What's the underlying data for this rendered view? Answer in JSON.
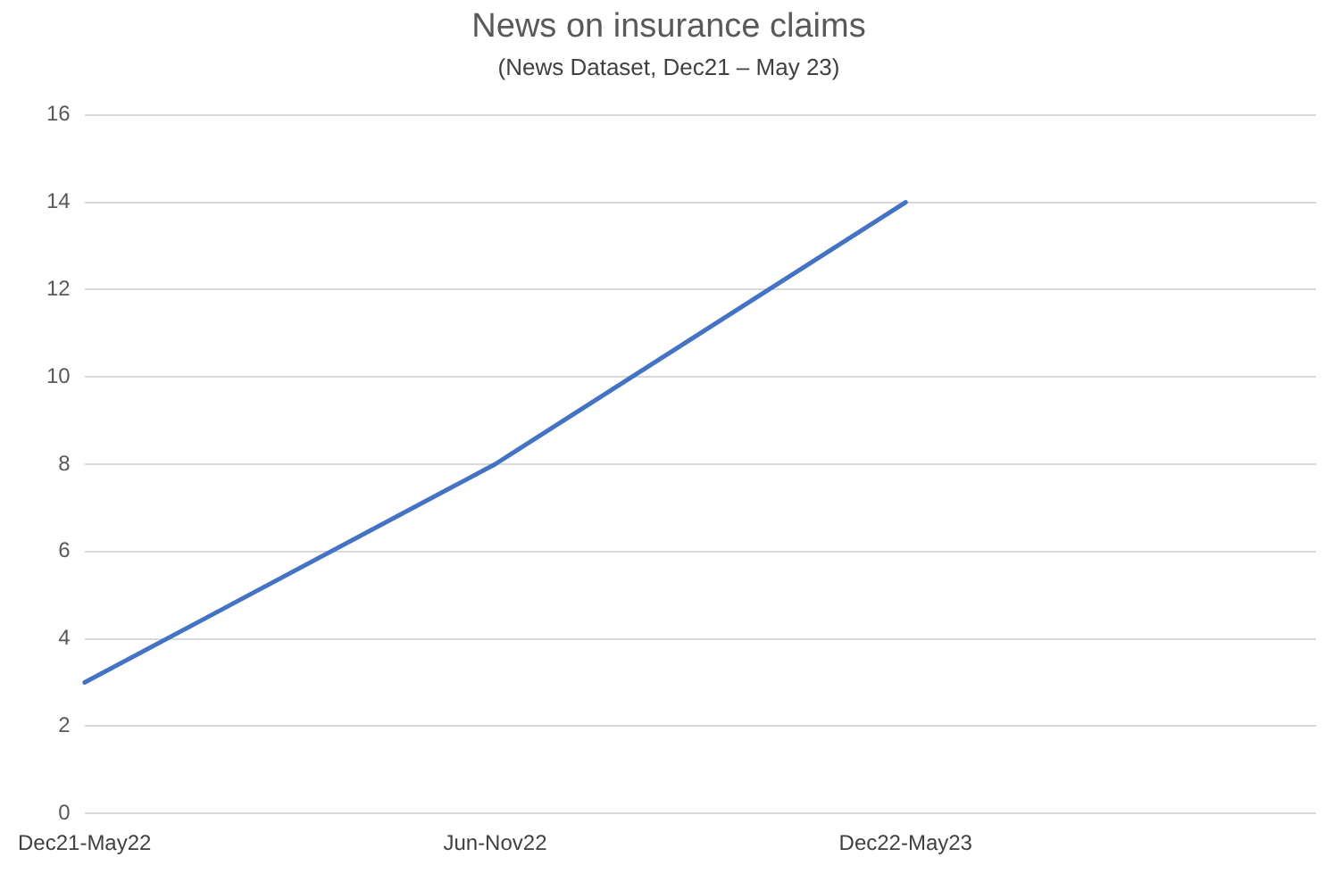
{
  "chart_data": {
    "type": "line",
    "title": "News on insurance claims",
    "subtitle": "(News Dataset, Dec21 – May 23)",
    "categories": [
      "Dec21-May22",
      "Jun-Nov22",
      "Dec22-May23",
      null
    ],
    "series": [
      {
        "color": "#4472c4",
        "values": [
          3,
          8,
          14,
          null
        ]
      }
    ],
    "ylim": [
      0,
      16
    ],
    "yticks": [
      0,
      2,
      4,
      6,
      8,
      10,
      12,
      14,
      16
    ],
    "grid": "y",
    "marker": "none",
    "line_style": "solid"
  }
}
